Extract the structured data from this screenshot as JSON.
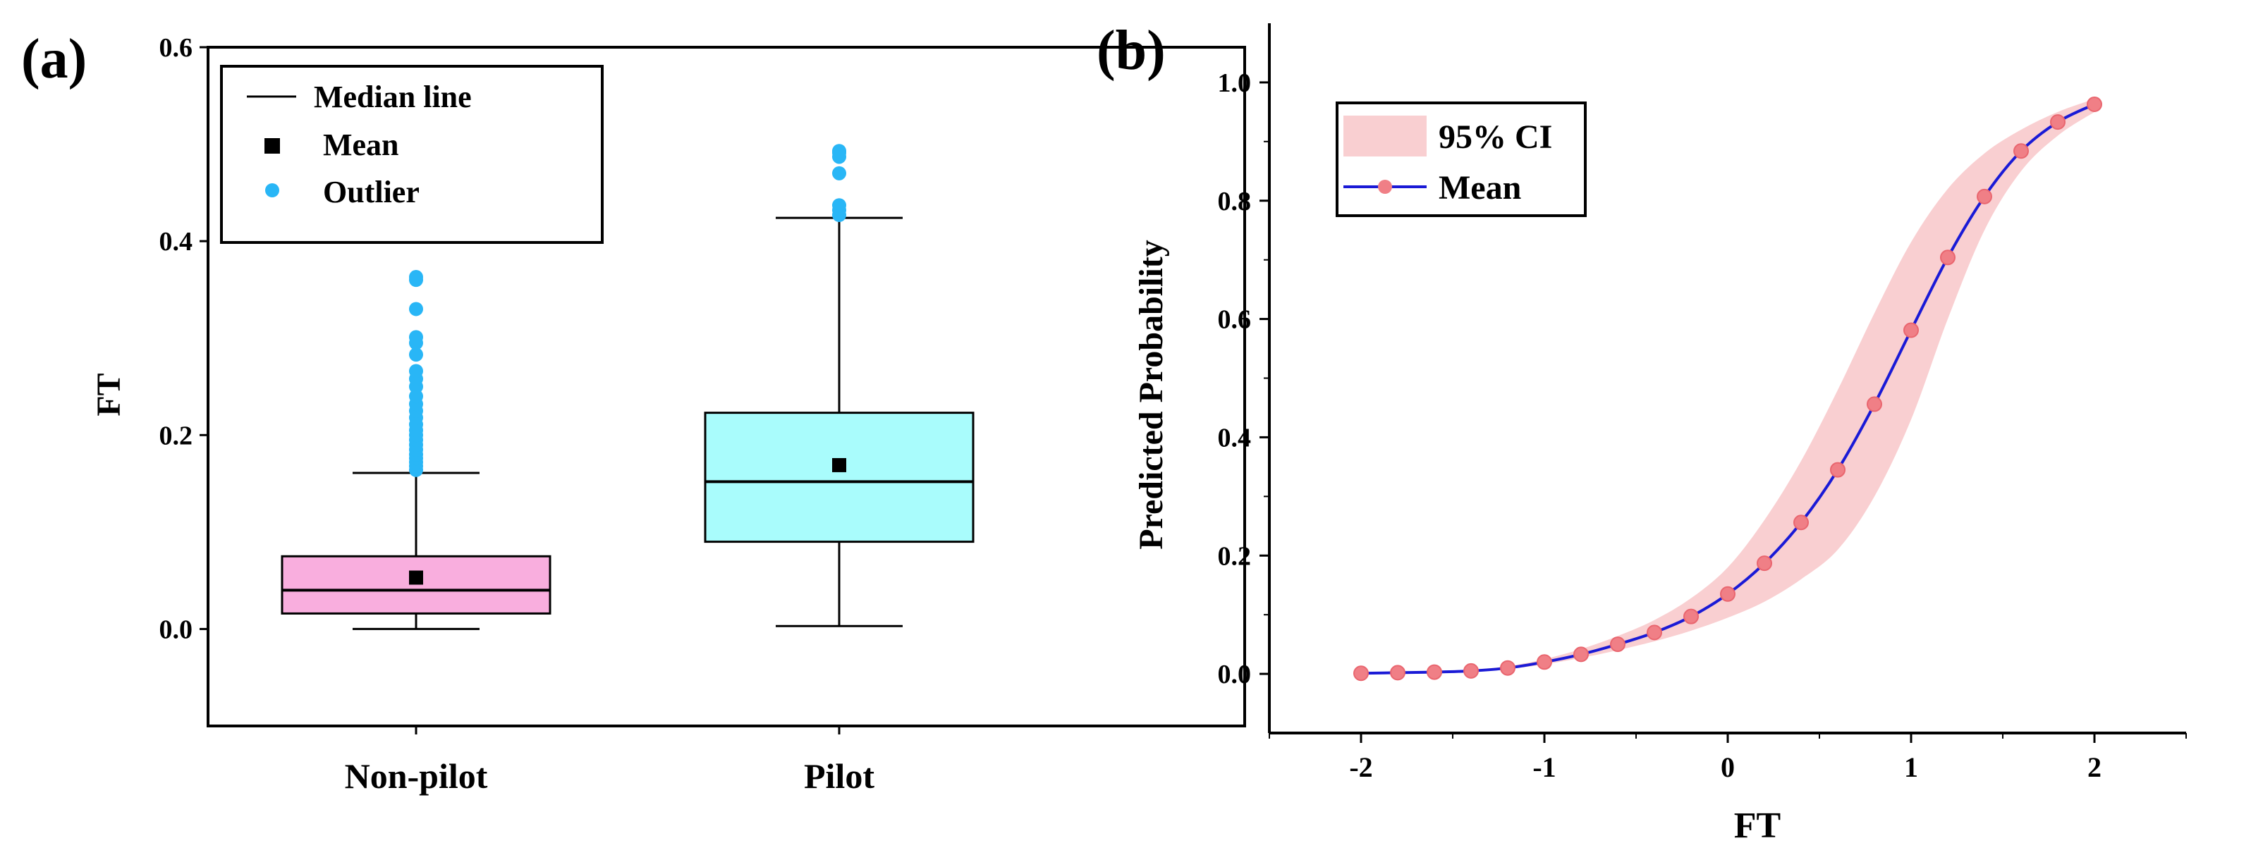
{
  "panel_a": {
    "label": "(a)",
    "legend": {
      "median": "Median line",
      "mean": "Mean",
      "outlier": "Outlier"
    }
  },
  "panel_b": {
    "label": "(b)",
    "legend": {
      "ci": "95% CI",
      "mean": "Mean"
    }
  },
  "colors": {
    "nonpilot_box": "#f9aede",
    "pilot_box": "#a9fcfc",
    "outlier": "#29b6f6",
    "ci_band": "#f9cfd1",
    "mean_line": "#1a1ad6",
    "mean_marker": "#f07f86"
  },
  "chart_data": [
    {
      "type": "box",
      "ylabel": "FT",
      "xlabel": "",
      "ylim": [
        -0.1,
        0.6
      ],
      "yticks": [
        0.0,
        0.2,
        0.4,
        0.6
      ],
      "ytick_labels": [
        "0.0",
        "0.2",
        "0.4",
        "0.6"
      ],
      "categories": [
        "Non-pilot",
        "Pilot"
      ],
      "boxes": [
        {
          "name": "Non-pilot",
          "whisker_low": 0.0,
          "q1": 0.016,
          "median": 0.04,
          "q3": 0.075,
          "whisker_high": 0.161,
          "mean": 0.053,
          "outliers": [
            0.164,
            0.168,
            0.172,
            0.176,
            0.18,
            0.185,
            0.19,
            0.195,
            0.2,
            0.205,
            0.211,
            0.218,
            0.225,
            0.232,
            0.24,
            0.25,
            0.258,
            0.266,
            0.283,
            0.295,
            0.301,
            0.33,
            0.36,
            0.363
          ]
        },
        {
          "name": "Pilot",
          "whisker_low": 0.003,
          "q1": 0.09,
          "median": 0.152,
          "q3": 0.223,
          "whisker_high": 0.424,
          "mean": 0.169,
          "outliers": [
            0.427,
            0.432,
            0.437,
            0.47,
            0.487,
            0.491,
            0.493
          ]
        }
      ]
    },
    {
      "type": "line",
      "xlabel": "FT",
      "ylabel": "Predicted Probability",
      "xlim": [
        -2.5,
        2.5
      ],
      "ylim": [
        -0.1,
        1.1
      ],
      "xticks": [
        -2,
        -1,
        0,
        1,
        2
      ],
      "xtick_labels": [
        "-2",
        "-1",
        "0",
        "1",
        "2"
      ],
      "yticks": [
        0.0,
        0.2,
        0.4,
        0.6,
        0.8,
        1.0
      ],
      "ytick_labels": [
        "0.0",
        "0.2",
        "0.4",
        "0.6",
        "0.8",
        "1.0"
      ],
      "series": [
        {
          "name": "Mean",
          "x": [
            -2.0,
            -1.8,
            -1.6,
            -1.4,
            -1.2,
            -1.0,
            -0.8,
            -0.6,
            -0.4,
            -0.2,
            0.0,
            0.2,
            0.4,
            0.6,
            0.8,
            1.0,
            1.2,
            1.4,
            1.6,
            1.8,
            2.0
          ],
          "values": [
            0.001,
            0.002,
            0.003,
            0.005,
            0.01,
            0.02,
            0.033,
            0.05,
            0.07,
            0.097,
            0.135,
            0.187,
            0.256,
            0.345,
            0.456,
            0.581,
            0.704,
            0.807,
            0.884,
            0.933,
            0.963
          ]
        }
      ],
      "band": {
        "name": "95% CI",
        "x": [
          -2.0,
          -1.8,
          -1.6,
          -1.4,
          -1.2,
          -1.0,
          -0.8,
          -0.6,
          -0.4,
          -0.2,
          0.0,
          0.2,
          0.4,
          0.6,
          0.8,
          1.0,
          1.2,
          1.4,
          1.6,
          1.8,
          2.0
        ],
        "lower": [
          0.0,
          0.001,
          0.002,
          0.004,
          0.008,
          0.016,
          0.027,
          0.04,
          0.055,
          0.073,
          0.095,
          0.122,
          0.16,
          0.21,
          0.3,
          0.43,
          0.6,
          0.75,
          0.85,
          0.91,
          0.95
        ],
        "upper": [
          0.002,
          0.003,
          0.005,
          0.007,
          0.013,
          0.025,
          0.042,
          0.064,
          0.091,
          0.128,
          0.18,
          0.26,
          0.36,
          0.48,
          0.61,
          0.73,
          0.82,
          0.88,
          0.92,
          0.95,
          0.972
        ]
      }
    }
  ]
}
